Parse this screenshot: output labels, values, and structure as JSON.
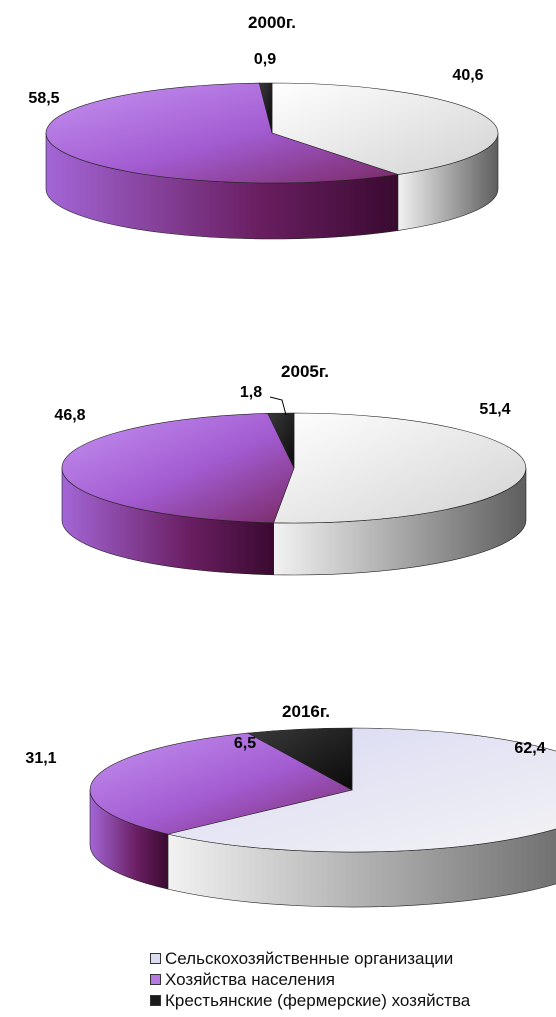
{
  "colors": {
    "agri_orgs": "#e8e8e8",
    "households": "#b57ae6",
    "farms": "#1a1a1a"
  },
  "legend": {
    "items": [
      {
        "label": "Сельскохозяйственные организации",
        "color_key": "agri_orgs"
      },
      {
        "label": "Хозяйства населения",
        "color_key": "households"
      },
      {
        "label": "Крестьянские (фермерские) хозяйства",
        "color_key": "farms"
      }
    ]
  },
  "chart_data": [
    {
      "type": "pie",
      "title": "2000г.",
      "categories": [
        "Сельскохозяйственные организации",
        "Хозяйства населения",
        "Крестьянские (фермерские) хозяйства"
      ],
      "values": [
        40.6,
        58.5,
        0.9
      ],
      "value_labels": [
        "40,6",
        "58,5",
        "0,9"
      ]
    },
    {
      "type": "pie",
      "title": "2005г.",
      "categories": [
        "Сельскохозяйственные организации",
        "Хозяйства населения",
        "Крестьянские (фермерские) хозяйства"
      ],
      "values": [
        51.4,
        46.8,
        1.8
      ],
      "value_labels": [
        "51,4",
        "46,8",
        "1,8"
      ]
    },
    {
      "type": "pie",
      "title": "2016г.",
      "categories": [
        "Сельскохозяйственные организации",
        "Хозяйства населения",
        "Крестьянские (фермерские) хозяйства"
      ],
      "values": [
        62.4,
        31.1,
        6.5
      ],
      "value_labels": [
        "62,4",
        "31,1",
        "6,5"
      ]
    }
  ]
}
